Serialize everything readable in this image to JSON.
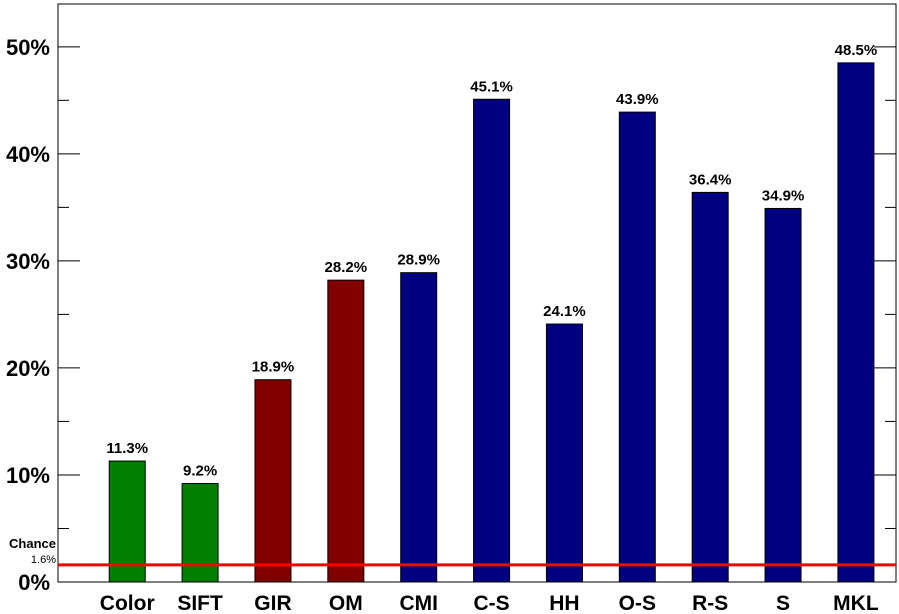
{
  "chart_data": {
    "type": "bar",
    "categories": [
      "Color",
      "SIFT",
      "GIR",
      "OM",
      "CMI",
      "C-S",
      "HH",
      "O-S",
      "R-S",
      "S",
      "MKL"
    ],
    "values": [
      11.3,
      9.2,
      18.9,
      28.2,
      28.9,
      45.1,
      24.1,
      43.9,
      36.4,
      34.9,
      48.5
    ],
    "bar_value_labels": [
      "11.3%",
      "9.2%",
      "18.9%",
      "28.2%",
      "28.9%",
      "45.1%",
      "24.1%",
      "43.9%",
      "36.4%",
      "34.9%",
      "48.5%"
    ],
    "bar_colors": [
      "#008000",
      "#008000",
      "#800000",
      "#800000",
      "#000080",
      "#000080",
      "#000080",
      "#000080",
      "#000080",
      "#000080",
      "#000080"
    ],
    "ylim": [
      0,
      54
    ],
    "yticks": [
      0,
      10,
      20,
      30,
      40,
      50
    ],
    "ytick_labels": [
      "0%",
      "10%",
      "20%",
      "30%",
      "40%",
      "50%"
    ],
    "yminor_ticks": [
      5,
      15,
      25,
      35,
      45
    ],
    "title": "",
    "xlabel": "",
    "ylabel": "",
    "grid": false,
    "chance": {
      "label": "Chance",
      "value": 1.6,
      "value_label": "1.6%",
      "color": "#ff0000"
    }
  }
}
